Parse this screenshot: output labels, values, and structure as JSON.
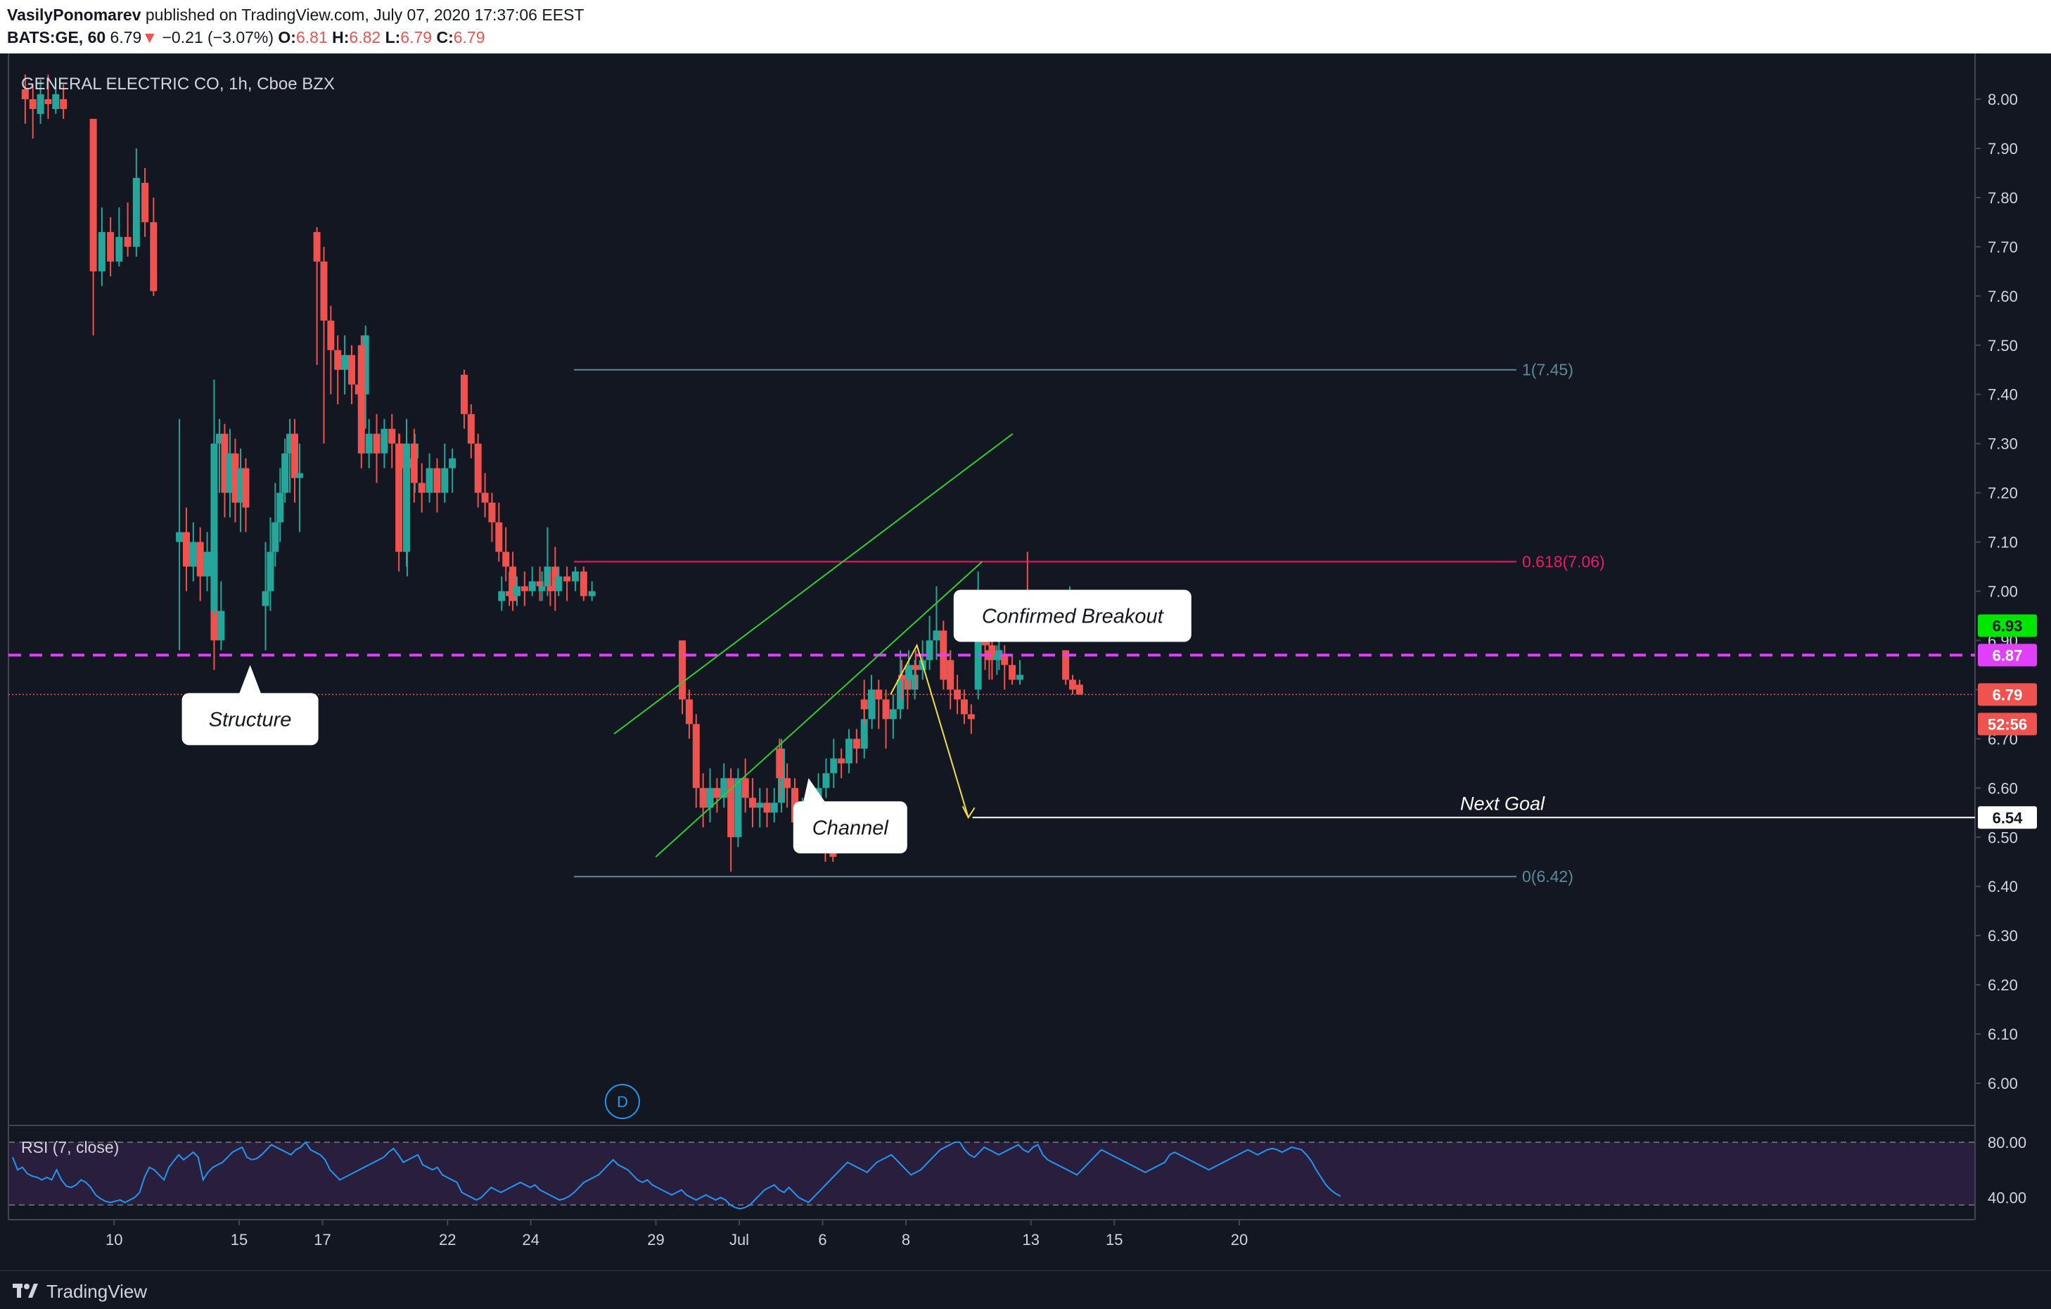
{
  "header": {
    "author": "VasilyPonomarev",
    "published": "published on TradingView.com, July 07, 2020 17:37:06 EEST",
    "symbol": "BATS:GE, 60",
    "last": "6.79",
    "change": "−0.21 (−3.07%)",
    "o_label": "O:",
    "o_val": "6.81",
    "h_label": "H:",
    "h_val": "6.82",
    "l_label": "L:",
    "l_val": "6.79",
    "c_label": "C:",
    "c_val": "6.79"
  },
  "chart_title": "GENERAL ELECTRIC CO, 1h, Cboe BZX",
  "rsi_label": "RSI (7, close)",
  "brand": "TradingView",
  "colors": {
    "background": "#131722",
    "up": "#26a69a",
    "down": "#ef5350",
    "fib": "#5d8a96",
    "fib618": "#e91e63",
    "channel": "#33cc33",
    "structure": "#e040fb",
    "path": "#f2e03c",
    "rsi": "#2196f3"
  },
  "chart_data": {
    "type": "candlestick",
    "title": "GENERAL ELECTRIC CO, 1h, Cboe BZX",
    "ylim": [
      5.9,
      8.05
    ],
    "yticks": [
      "8.00",
      "7.90",
      "7.80",
      "7.70",
      "7.60",
      "7.50",
      "7.40",
      "7.30",
      "7.20",
      "7.10",
      "7.00",
      "6.90",
      "6.80",
      "6.70",
      "6.60",
      "6.50",
      "6.40",
      "6.30",
      "6.20",
      "6.10",
      "6.00"
    ],
    "xticks": [
      {
        "label": "10",
        "d": 7
      },
      {
        "label": "15",
        "d": 16
      },
      {
        "label": "17",
        "d": 22
      },
      {
        "label": "22",
        "d": 31
      },
      {
        "label": "24",
        "d": 37
      },
      {
        "label": "29",
        "d": 46
      },
      {
        "label": "Jul",
        "d": 52
      },
      {
        "label": "6",
        "d": 58
      },
      {
        "label": "8",
        "d": 64
      },
      {
        "label": "13",
        "d": 73
      },
      {
        "label": "15",
        "d": 79
      },
      {
        "label": "20",
        "d": 88
      }
    ],
    "candles": [
      [
        8.02,
        8.0,
        8.05,
        7.95
      ],
      [
        8.0,
        7.98,
        8.03,
        7.92
      ],
      [
        7.97,
        8.01,
        8.04,
        7.95
      ],
      [
        8.0,
        7.99,
        8.05,
        7.96
      ],
      [
        7.98,
        8.01,
        8.04,
        7.97
      ],
      [
        8.0,
        7.98,
        8.03,
        7.96
      ],
      [
        7.96,
        7.65,
        7.96,
        7.52
      ],
      [
        7.65,
        7.73,
        7.78,
        7.62
      ],
      [
        7.73,
        7.67,
        7.76,
        7.64
      ],
      [
        7.67,
        7.72,
        7.78,
        7.66
      ],
      [
        7.72,
        7.7,
        7.79,
        7.68
      ],
      [
        7.7,
        7.84,
        7.9,
        7.68
      ],
      [
        7.83,
        7.75,
        7.86,
        7.72
      ],
      [
        7.75,
        7.61,
        7.8,
        7.6
      ],
      [
        7.1,
        7.12,
        7.35,
        6.88
      ],
      [
        7.12,
        7.05,
        7.17,
        7.0
      ],
      [
        7.05,
        7.1,
        7.14,
        7.02
      ],
      [
        7.1,
        7.03,
        7.13,
        6.98
      ],
      [
        7.03,
        7.08,
        7.12,
        7.0
      ],
      [
        7.08,
        6.9,
        7.1,
        6.84
      ],
      [
        6.9,
        6.96,
        7.02,
        6.88
      ],
      [
        6.96,
        7.3,
        7.43,
        6.95
      ],
      [
        7.3,
        7.32,
        7.35,
        7.2
      ],
      [
        7.32,
        7.2,
        7.34,
        7.15
      ],
      [
        7.2,
        7.28,
        7.33,
        7.15
      ],
      [
        7.28,
        7.18,
        7.31,
        7.14
      ],
      [
        7.18,
        7.25,
        7.29,
        7.12
      ],
      [
        7.25,
        7.17,
        7.27,
        7.12
      ],
      [
        6.97,
        7.0,
        7.1,
        6.88
      ],
      [
        7.0,
        7.08,
        7.15,
        6.96
      ],
      [
        7.08,
        7.14,
        7.22,
        7.05
      ],
      [
        7.14,
        7.2,
        7.25,
        7.1
      ],
      [
        7.2,
        7.28,
        7.31,
        7.18
      ],
      [
        7.28,
        7.32,
        7.35,
        7.2
      ],
      [
        7.32,
        7.23,
        7.35,
        7.18
      ],
      [
        7.23,
        7.24,
        7.3,
        7.12
      ],
      [
        7.73,
        7.67,
        7.74,
        7.46
      ],
      [
        7.67,
        7.55,
        7.7,
        7.3
      ],
      [
        7.55,
        7.49,
        7.58,
        7.4
      ],
      [
        7.49,
        7.45,
        7.52,
        7.38
      ],
      [
        7.45,
        7.48,
        7.52,
        7.4
      ],
      [
        7.48,
        7.42,
        7.5,
        7.38
      ],
      [
        7.42,
        7.4,
        7.48,
        7.36
      ],
      [
        7.4,
        7.52,
        7.54,
        7.33
      ],
      [
        7.5,
        7.28,
        7.52,
        7.25
      ],
      [
        7.28,
        7.32,
        7.35,
        7.25
      ],
      [
        7.32,
        7.28,
        7.36,
        7.22
      ],
      [
        7.28,
        7.33,
        7.35,
        7.25
      ],
      [
        7.33,
        7.3,
        7.36,
        7.25
      ],
      [
        7.3,
        7.25,
        7.32,
        7.2
      ],
      [
        7.25,
        7.27,
        7.28,
        7.03
      ],
      [
        7.27,
        7.3,
        7.32,
        7.2
      ],
      [
        7.3,
        7.08,
        7.32,
        7.04
      ],
      [
        7.08,
        7.3,
        7.35,
        7.05
      ],
      [
        7.3,
        7.22,
        7.33,
        7.18
      ],
      [
        7.22,
        7.2,
        7.26,
        7.16
      ],
      [
        7.2,
        7.25,
        7.28,
        7.18
      ],
      [
        7.25,
        7.2,
        7.27,
        7.16
      ],
      [
        7.2,
        7.25,
        7.3,
        7.18
      ],
      [
        7.25,
        7.27,
        7.29,
        7.2
      ],
      [
        7.44,
        7.36,
        7.45,
        7.33
      ],
      [
        7.36,
        7.3,
        7.38,
        7.27
      ],
      [
        7.3,
        7.2,
        7.32,
        7.17
      ],
      [
        7.2,
        7.18,
        7.24,
        7.15
      ],
      [
        7.18,
        7.14,
        7.2,
        7.1
      ],
      [
        7.14,
        7.08,
        7.18,
        7.06
      ],
      [
        7.08,
        7.05,
        7.13,
        7.02
      ],
      [
        7.05,
        6.98,
        7.08,
        6.96
      ],
      [
        6.98,
        7.0,
        7.03,
        6.96
      ],
      [
        7.0,
        6.99,
        7.04,
        6.97
      ],
      [
        6.99,
        7.01,
        7.03,
        6.97
      ],
      [
        7.01,
        7.0,
        7.04,
        6.97
      ],
      [
        7.0,
        7.02,
        7.05,
        6.99
      ],
      [
        7.02,
        7.01,
        7.05,
        6.98
      ],
      [
        7.01,
        7.05,
        7.13,
        6.99
      ],
      [
        7.05,
        7.0,
        7.09,
        6.96
      ],
      [
        7.0,
        7.01,
        7.04,
        6.98
      ],
      [
        7.01,
        7.0,
        7.04,
        6.97
      ],
      [
        7.0,
        7.03,
        7.05,
        6.99
      ],
      [
        7.03,
        7.02,
        7.05,
        6.98
      ],
      [
        7.02,
        7.04,
        7.05,
        7.0
      ],
      [
        7.04,
        6.99,
        7.05,
        6.98
      ],
      [
        6.99,
        7.0,
        7.02,
        6.98
      ],
      [
        6.9,
        6.78,
        6.9,
        6.75
      ],
      [
        6.78,
        6.73,
        6.8,
        6.7
      ],
      [
        6.73,
        6.6,
        6.75,
        6.56
      ],
      [
        6.6,
        6.56,
        6.63,
        6.52
      ],
      [
        6.56,
        6.6,
        6.64,
        6.53
      ],
      [
        6.6,
        6.58,
        6.62,
        6.55
      ],
      [
        6.58,
        6.62,
        6.65,
        6.56
      ],
      [
        6.62,
        6.58,
        6.64,
        6.52
      ],
      [
        6.58,
        6.5,
        6.6,
        6.43
      ],
      [
        6.5,
        6.62,
        6.64,
        6.48
      ],
      [
        6.62,
        6.58,
        6.66,
        6.55
      ],
      [
        6.58,
        6.56,
        6.62,
        6.52
      ],
      [
        6.56,
        6.57,
        6.6,
        6.52
      ],
      [
        6.57,
        6.55,
        6.6,
        6.52
      ],
      [
        6.55,
        6.57,
        6.6,
        6.53
      ],
      [
        6.57,
        6.68,
        6.7,
        6.55
      ],
      [
        6.68,
        6.62,
        6.7,
        6.58
      ],
      [
        6.62,
        6.6,
        6.65,
        6.56
      ],
      [
        6.6,
        6.53,
        6.62,
        6.5
      ],
      [
        6.53,
        6.55,
        6.58,
        6.5
      ],
      [
        6.55,
        6.52,
        6.57,
        6.48
      ],
      [
        6.52,
        6.51,
        6.55,
        6.48
      ],
      [
        6.51,
        6.47,
        6.53,
        6.45
      ],
      [
        6.47,
        6.46,
        6.49,
        6.45
      ],
      [
        6.5,
        6.6,
        6.63,
        6.48
      ],
      [
        6.6,
        6.63,
        6.66,
        6.58
      ],
      [
        6.63,
        6.66,
        6.7,
        6.6
      ],
      [
        6.66,
        6.65,
        6.68,
        6.62
      ],
      [
        6.65,
        6.7,
        6.72,
        6.63
      ],
      [
        6.7,
        6.68,
        6.72,
        6.65
      ],
      [
        6.68,
        6.74,
        6.77,
        6.66
      ],
      [
        6.74,
        6.78,
        6.8,
        6.72
      ],
      [
        6.78,
        6.76,
        6.82,
        6.73
      ],
      [
        6.76,
        6.8,
        6.83,
        6.74
      ],
      [
        6.8,
        6.78,
        6.82,
        6.72
      ],
      [
        6.78,
        6.74,
        6.8,
        6.68
      ],
      [
        6.74,
        6.76,
        6.79,
        6.7
      ],
      [
        6.76,
        6.82,
        6.88,
        6.74
      ],
      [
        6.82,
        6.8,
        6.84,
        6.76
      ],
      [
        6.8,
        6.83,
        6.86,
        6.78
      ],
      [
        6.83,
        6.82,
        6.86,
        6.78
      ],
      [
        6.82,
        6.85,
        6.88,
        6.8
      ],
      [
        6.85,
        6.84,
        6.88,
        6.8
      ],
      [
        6.84,
        6.86,
        6.9,
        6.82
      ],
      [
        6.86,
        6.9,
        6.95,
        6.84
      ],
      [
        6.9,
        6.92,
        7.01,
        6.86
      ],
      [
        6.92,
        6.82,
        6.94,
        6.8
      ],
      [
        6.82,
        6.86,
        6.88,
        6.8
      ],
      [
        6.86,
        6.8,
        6.88,
        6.76
      ],
      [
        6.8,
        6.78,
        6.83,
        6.75
      ],
      [
        6.78,
        6.75,
        6.8,
        6.73
      ],
      [
        6.75,
        6.74,
        6.77,
        6.71
      ],
      [
        6.8,
        6.92,
        7.04,
        6.78
      ],
      [
        6.92,
        6.89,
        6.94,
        6.84
      ],
      [
        6.89,
        6.86,
        6.92,
        6.82
      ],
      [
        6.86,
        6.88,
        6.91,
        6.84
      ],
      [
        6.88,
        6.86,
        6.9,
        6.82
      ],
      [
        6.86,
        6.87,
        6.89,
        6.83
      ],
      [
        6.87,
        6.85,
        6.89,
        6.8
      ],
      [
        6.85,
        6.82,
        6.87,
        6.81
      ],
      [
        6.82,
        6.83,
        6.86,
        6.81
      ],
      [
        6.98,
        6.96,
        7.08,
        6.95
      ],
      [
        6.96,
        6.92,
        6.98,
        6.9
      ],
      [
        6.92,
        6.94,
        6.97,
        6.9
      ],
      [
        6.94,
        6.95,
        6.97,
        6.92
      ],
      [
        6.95,
        6.96,
        6.98,
        6.93
      ],
      [
        6.96,
        6.95,
        6.98,
        6.93
      ],
      [
        6.95,
        6.97,
        6.99,
        6.94
      ],
      [
        6.97,
        6.96,
        6.99,
        6.94
      ],
      [
        6.97,
        7.0,
        7.01,
        6.96
      ],
      [
        6.88,
        6.82,
        6.88,
        6.81
      ],
      [
        6.82,
        6.8,
        6.83,
        6.79
      ],
      [
        6.81,
        6.79,
        6.82,
        6.79
      ]
    ],
    "fibonacci": [
      {
        "label": "1(7.45)",
        "value": 7.45
      },
      {
        "label": "0.618(7.06)",
        "value": 7.06
      },
      {
        "label": "0(6.42)",
        "value": 6.42
      }
    ],
    "structure_level": 6.87,
    "current_price_line": 6.79,
    "channel": {
      "upper": [
        {
          "d": 43.8,
          "v": 6.71
        },
        {
          "d": 72.5,
          "v": 7.32
        }
      ],
      "lower": [
        {
          "d": 46.8,
          "v": 6.46
        },
        {
          "d": 70.3,
          "v": 7.06
        }
      ]
    },
    "projection": [
      {
        "d": 63.7,
        "v": 6.79
      },
      {
        "d": 65.6,
        "v": 6.89
      },
      {
        "d": 69.3,
        "v": 6.54
      }
    ],
    "next_goal_level": 6.54,
    "price_badges": [
      {
        "text": "6.93",
        "value": 6.93,
        "bg": "#00e600",
        "fg": "#131722"
      },
      {
        "text": "6.87",
        "value": 6.87,
        "bg": "#e040fb",
        "fg": "#ffffff"
      },
      {
        "text": "6.79",
        "value": 6.79,
        "bg": "#ef5350",
        "fg": "#ffffff"
      },
      {
        "text": "52:56",
        "value": 6.73,
        "bg": "#ef5350",
        "fg": "#ffffff"
      },
      {
        "text": "6.54",
        "value": 6.54,
        "bg": "#ffffff",
        "fg": "#131722"
      }
    ],
    "annotations": [
      {
        "text": "Structure",
        "box_d": 17.6,
        "box_v": 6.74,
        "tip_d": 17.6,
        "tip_v": 6.85
      },
      {
        "text": "Channel",
        "box_d": 60.8,
        "box_v": 6.52,
        "tip_d": 57.8,
        "tip_v": 6.62
      },
      {
        "text": "Confirmed Breakout",
        "box_d": 76.8,
        "box_v": 6.95,
        "tip_d": 68.5,
        "tip_v": 6.93
      }
    ],
    "next_goal_text": "Next Goal",
    "event_marker": {
      "text": "D",
      "d": 44.4
    },
    "rsi": {
      "label": "RSI (7, close)",
      "ylim": [
        20,
        90
      ],
      "levels": [
        80,
        30
      ],
      "ticks": [
        "80.00",
        "40.00"
      ],
      "values": [
        68,
        58,
        60,
        55,
        53,
        52,
        50,
        52,
        50,
        58,
        50,
        45,
        44,
        46,
        50,
        48,
        44,
        38,
        35,
        33,
        32,
        33,
        34,
        32,
        34,
        36,
        40,
        52,
        60,
        58,
        54,
        50,
        60,
        65,
        70,
        66,
        69,
        72,
        68,
        50,
        56,
        60,
        62,
        64,
        68,
        72,
        74,
        76,
        68,
        66,
        67,
        70,
        74,
        78,
        76,
        74,
        72,
        70,
        74,
        76,
        80,
        74,
        72,
        70,
        66,
        58,
        54,
        50,
        52,
        54,
        56,
        58,
        60,
        62,
        64,
        66,
        68,
        72,
        75,
        70,
        64,
        66,
        68,
        70,
        62,
        60,
        58,
        60,
        54,
        52,
        50,
        48,
        40,
        38,
        36,
        34,
        36,
        40,
        44,
        42,
        40,
        42,
        44,
        46,
        48,
        46,
        44,
        46,
        42,
        40,
        38,
        36,
        34,
        35,
        37,
        40,
        44,
        48,
        50,
        52,
        54,
        58,
        62,
        66,
        62,
        60,
        58,
        54,
        50,
        48,
        50,
        46,
        44,
        42,
        40,
        38,
        40,
        42,
        38,
        36,
        34,
        36,
        38,
        36,
        34,
        36,
        34,
        30,
        28,
        27,
        28,
        30,
        34,
        38,
        42,
        44,
        46,
        42,
        40,
        44,
        40,
        36,
        34,
        32,
        36,
        40,
        44,
        48,
        52,
        56,
        60,
        64,
        62,
        60,
        58,
        56,
        60,
        64,
        66,
        68,
        70,
        66,
        62,
        58,
        54,
        56,
        58,
        62,
        66,
        70,
        74,
        76,
        78,
        80,
        80,
        74,
        70,
        68,
        72,
        76,
        74,
        72,
        70,
        72,
        74,
        76,
        78,
        74,
        72,
        76,
        78,
        70,
        66,
        64,
        62,
        60,
        58,
        56,
        54,
        58,
        62,
        66,
        70,
        74,
        72,
        70,
        68,
        66,
        64,
        62,
        60,
        58,
        56,
        58,
        60,
        62,
        64,
        70,
        72,
        70,
        68,
        66,
        64,
        62,
        60,
        58,
        60,
        62,
        64,
        66,
        68,
        70,
        72,
        74,
        72,
        70,
        72,
        74,
        75,
        74,
        72,
        74,
        76,
        75,
        74,
        70,
        65,
        58,
        52,
        46,
        42,
        39,
        37
      ]
    }
  }
}
